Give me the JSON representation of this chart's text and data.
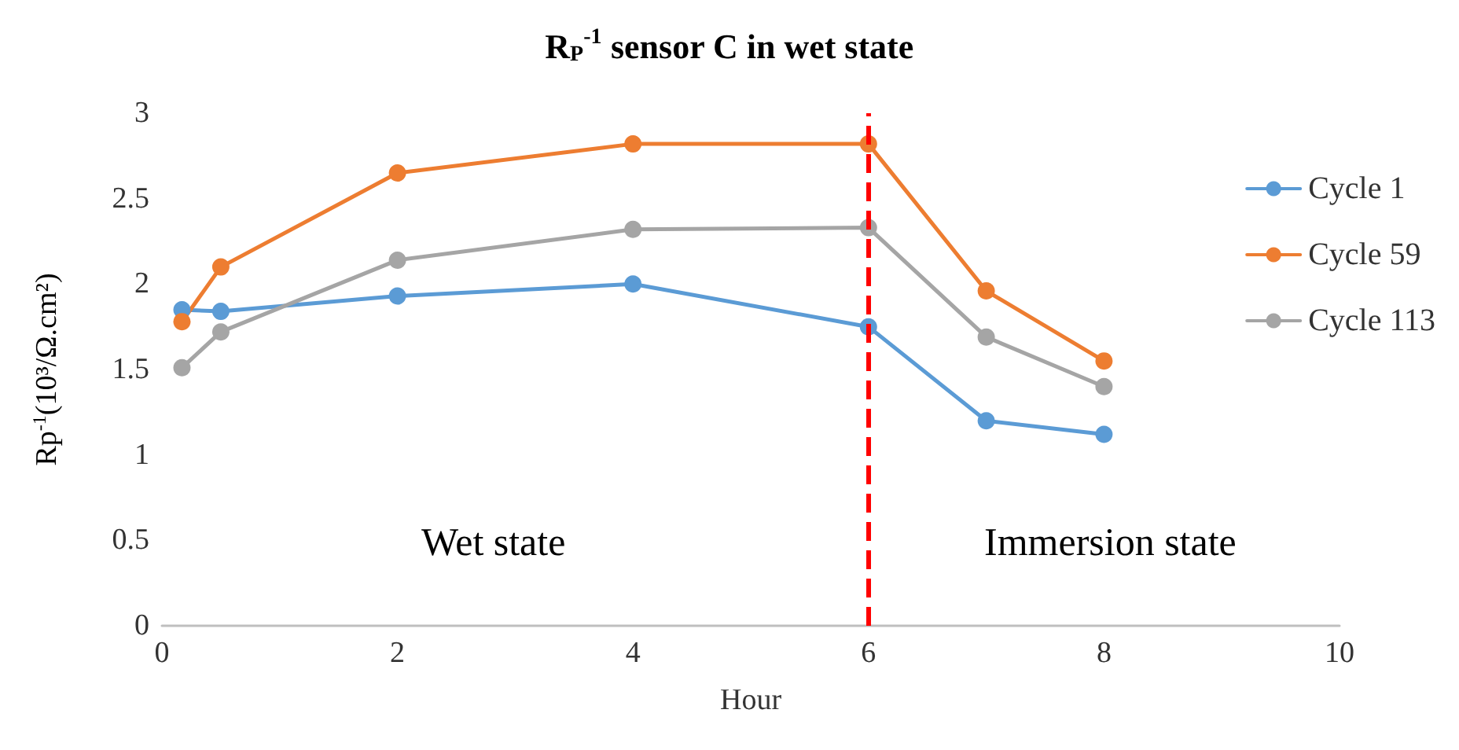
{
  "chart_data": {
    "type": "line",
    "title": "R$_{P}$$^{-1}$ sensor C in wet state",
    "xlabel": "Hour",
    "ylabel": "Rp$^{-1}$(10³/Ω.cm²)",
    "x": [
      0.17,
      0.5,
      2,
      4,
      6,
      7,
      8
    ],
    "series": [
      {
        "name": "Cycle 1",
        "color": "#5b9bd5",
        "values": [
          1.85,
          1.84,
          1.93,
          2.0,
          1.75,
          1.2,
          1.12
        ]
      },
      {
        "name": "Cycle 59",
        "color": "#ed7d31",
        "values": [
          1.78,
          2.1,
          2.65,
          2.82,
          2.82,
          1.96,
          1.55
        ]
      },
      {
        "name": "Cycle 113",
        "color": "#a5a5a5",
        "values": [
          1.51,
          1.72,
          2.14,
          2.32,
          2.33,
          1.69,
          1.4
        ]
      }
    ],
    "xlim": [
      0,
      10
    ],
    "xticks": [
      0,
      2,
      4,
      6,
      8,
      10
    ],
    "ylim": [
      0,
      3
    ],
    "yticks": [
      0,
      0.5,
      1,
      1.5,
      2,
      2.5,
      3
    ],
    "ref_lines": [
      {
        "axis": "x",
        "value": 6,
        "color": "#ff0000",
        "line_style": "dashed"
      }
    ],
    "annotations": [
      "Wet state",
      "Immersion state"
    ],
    "grid": false,
    "legend": "right",
    "marker": "circle",
    "line_style": "solid"
  }
}
